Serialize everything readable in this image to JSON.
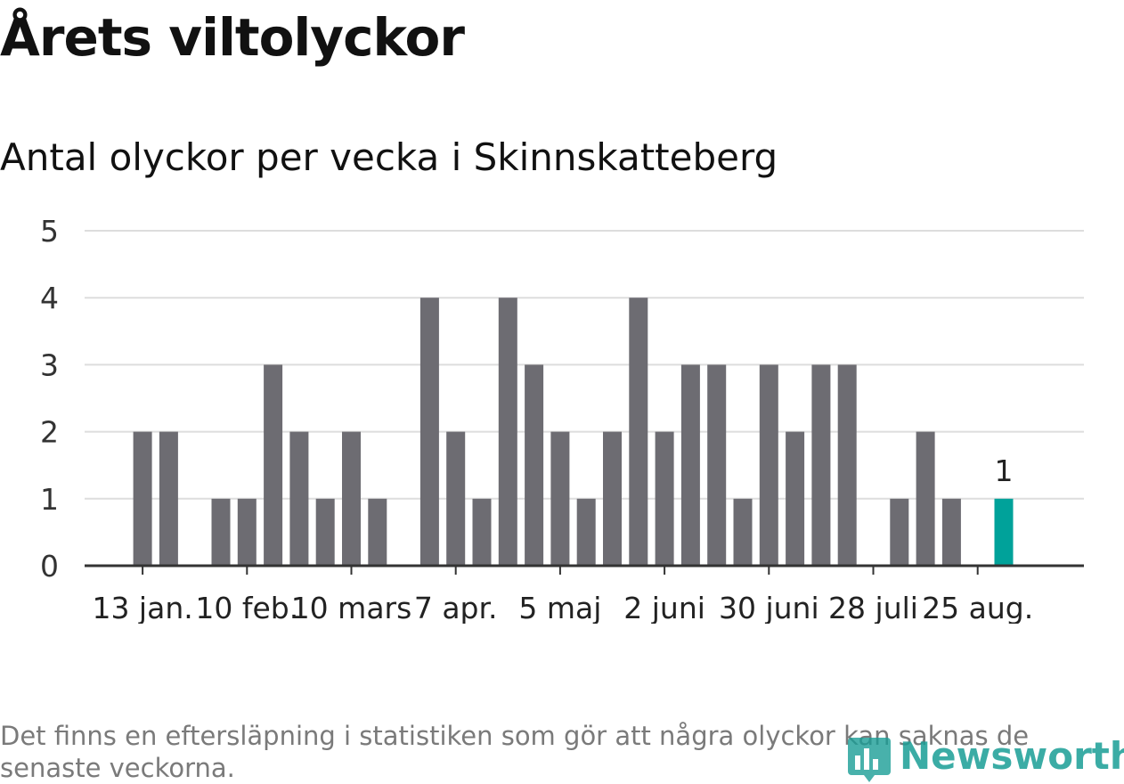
{
  "header": {
    "title": "Årets viltolyckor",
    "subtitle": "Antal olyckor per vecka i Skinnskatteberg"
  },
  "footnote": "Det finns en eftersläpning i statistiken som gör att några olyckor kan saknas de senaste veckorna.",
  "logo": {
    "text": "Newsworthy",
    "icon": "bar-chart-logo-icon"
  },
  "colors": {
    "bar": "#6d6c72",
    "highlight": "#00a29a",
    "grid": "#dddddd",
    "axis": "#333333"
  },
  "chart_data": {
    "type": "bar",
    "title": "Antal olyckor per vecka i Skinnskatteberg",
    "xlabel": "",
    "ylabel": "",
    "ylim": [
      0,
      5
    ],
    "y_ticks": [
      "0",
      "1",
      "2",
      "3",
      "4",
      "5"
    ],
    "x_tick_labels": [
      {
        "label": "13 jan.",
        "week": 3
      },
      {
        "label": "10 feb.",
        "week": 7
      },
      {
        "label": "10 mars",
        "week": 11
      },
      {
        "label": "7 apr.",
        "week": 15
      },
      {
        "label": "5 maj",
        "week": 19
      },
      {
        "label": "2 juni",
        "week": 23
      },
      {
        "label": "30 juni",
        "week": 27
      },
      {
        "label": "28 juli",
        "week": 31
      },
      {
        "label": "25 aug.",
        "week": 35
      }
    ],
    "weeks": [
      1,
      2,
      3,
      4,
      5,
      6,
      7,
      8,
      9,
      10,
      11,
      12,
      13,
      14,
      15,
      16,
      17,
      18,
      19,
      20,
      21,
      22,
      23,
      24,
      25,
      26,
      27,
      28,
      29,
      30,
      31,
      32,
      33,
      34,
      35,
      36,
      37
    ],
    "values": [
      0,
      0,
      2,
      2,
      0,
      1,
      1,
      3,
      2,
      1,
      2,
      1,
      0,
      4,
      2,
      1,
      4,
      3,
      2,
      1,
      2,
      4,
      2,
      3,
      3,
      1,
      3,
      2,
      3,
      3,
      0,
      1,
      2,
      1,
      0,
      1,
      0
    ],
    "highlight_week": 36,
    "highlight_label": "1",
    "grid": true
  }
}
